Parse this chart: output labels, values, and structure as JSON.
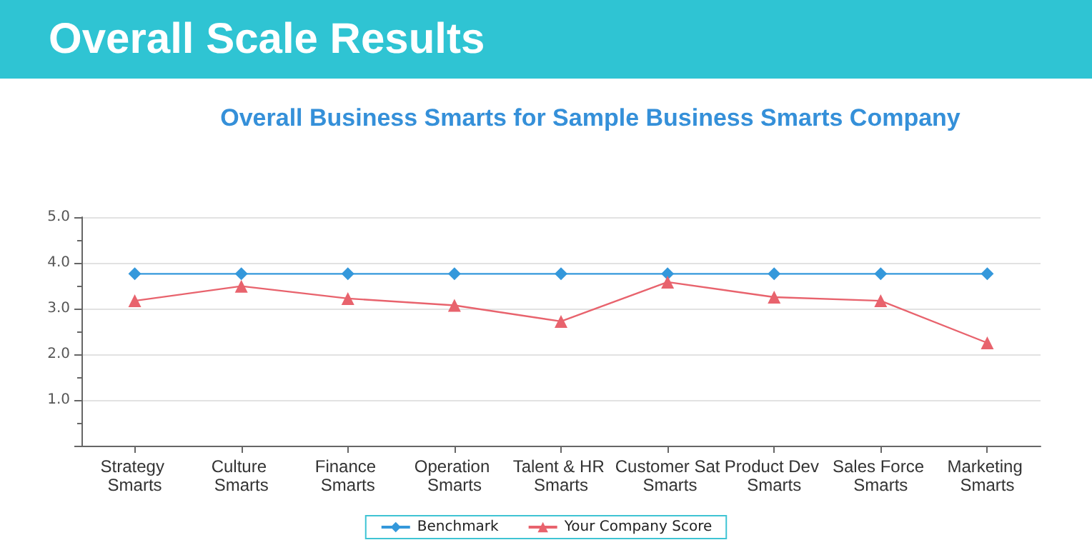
{
  "chart_data": {
    "type": "line",
    "title": "Overall Scale Results",
    "subtitle": "Overall Business Smarts for Sample Business Smarts Company",
    "categories": [
      "Strategy Smarts",
      "Culture Smarts",
      "Finance Smarts",
      "Operation Smarts",
      "Talent & HR Smarts",
      "Customer Sat Smarts",
      "Product Dev Smarts",
      "Sales Force Smarts",
      "Marketing Smarts"
    ],
    "series": [
      {
        "name": "Benchmark",
        "color": "#3498db",
        "marker": "diamond",
        "values": [
          3.76,
          3.76,
          3.76,
          3.76,
          3.76,
          3.76,
          3.76,
          3.76,
          3.76
        ]
      },
      {
        "name": "Your Company Score",
        "color": "#e8636d",
        "marker": "triangle",
        "values": [
          3.17,
          3.49,
          3.22,
          3.07,
          2.72,
          3.58,
          3.25,
          3.17,
          2.25
        ]
      }
    ],
    "ylim": [
      0,
      5
    ],
    "yticks": [
      {
        "value": 0,
        "label": null
      },
      {
        "value": 1,
        "label": "1.0"
      },
      {
        "value": 2,
        "label": "2.0"
      },
      {
        "value": 3,
        "label": "3.0"
      },
      {
        "value": 4,
        "label": "4.0"
      },
      {
        "value": 5,
        "label": "5.0"
      }
    ],
    "grid": "y",
    "legend": "bottom"
  }
}
